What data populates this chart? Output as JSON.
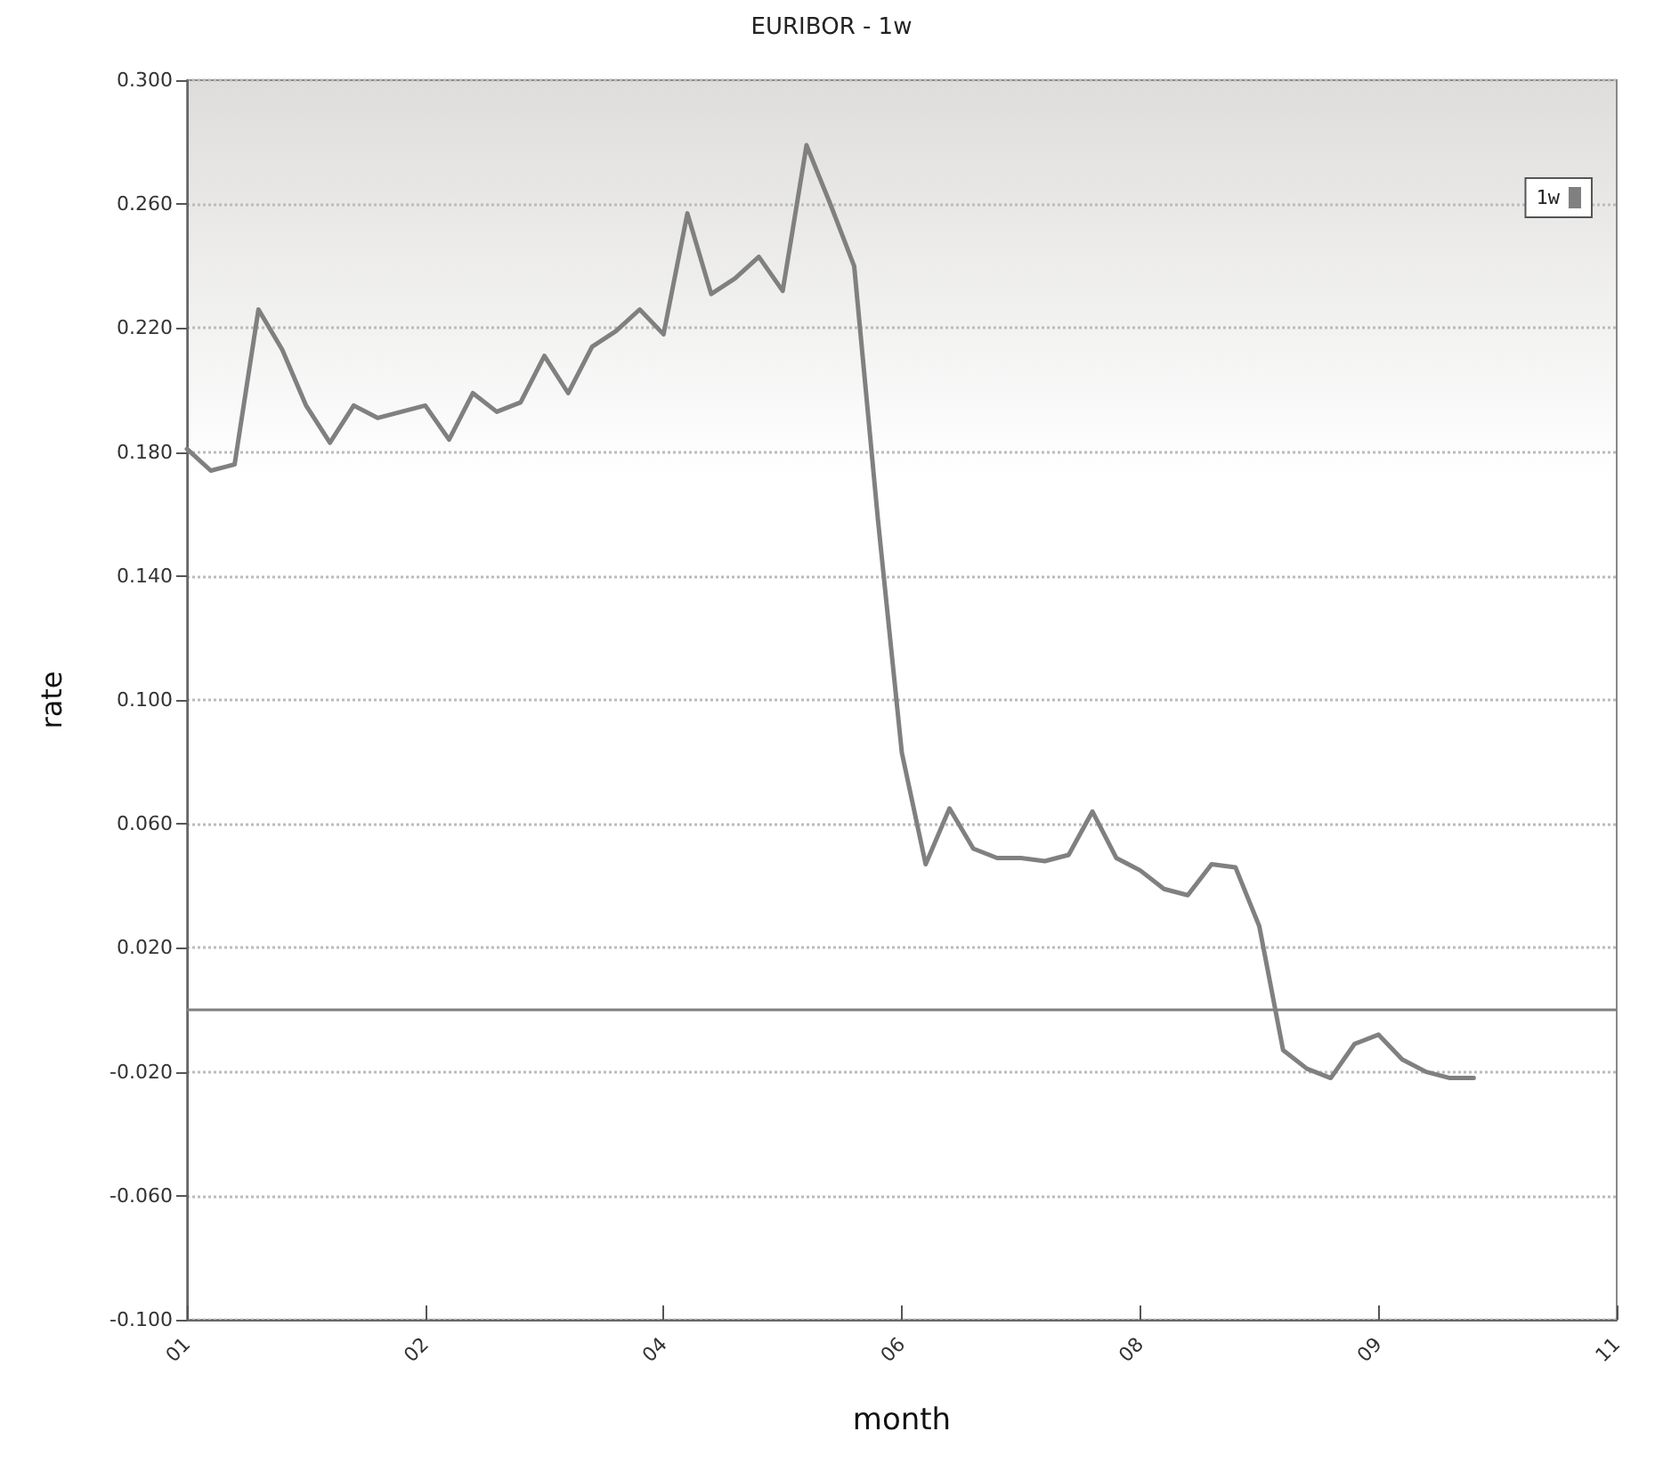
{
  "chart_data": {
    "type": "line",
    "title": "EURIBOR - 1w",
    "xlabel": "month",
    "ylabel": "rate",
    "categories": [
      "01",
      null,
      null,
      null,
      null,
      null,
      null,
      null,
      null,
      null,
      "02",
      null,
      null,
      null,
      null,
      null,
      null,
      null,
      null,
      null,
      "04",
      null,
      null,
      null,
      null,
      null,
      null,
      null,
      null,
      null,
      "06",
      null,
      null,
      null,
      null,
      null,
      null,
      null,
      null,
      null,
      "08",
      null,
      null,
      null,
      null,
      null,
      null,
      null,
      null,
      null,
      "09",
      null,
      null,
      null,
      null,
      null,
      null,
      null,
      null,
      null,
      "11"
    ],
    "ylim": [
      -0.1,
      0.3
    ],
    "yticks": [
      {
        "value": -0.1,
        "label": "-0.100"
      },
      {
        "value": -0.06,
        "label": "-0.060"
      },
      {
        "value": -0.02,
        "label": "-0.020"
      },
      {
        "value": 0.02,
        "label": "0.020"
      },
      {
        "value": 0.06,
        "label": "0.060"
      },
      {
        "value": 0.1,
        "label": "0.100"
      },
      {
        "value": 0.14,
        "label": "0.140"
      },
      {
        "value": 0.18,
        "label": "0.180"
      },
      {
        "value": 0.22,
        "label": "0.220"
      },
      {
        "value": 0.26,
        "label": "0.260"
      },
      {
        "value": 0.3,
        "label": "0.300"
      }
    ],
    "grid": "y",
    "legend": "top right",
    "marker": "none",
    "line_style": "solid",
    "ref_lines": [
      {
        "axis": "y",
        "value": 0,
        "color": "#808080"
      }
    ],
    "series": [
      {
        "name": "1w",
        "color": "#808080",
        "values": [
          0.181,
          0.174,
          0.176,
          0.226,
          0.213,
          0.195,
          0.183,
          0.195,
          0.191,
          0.193,
          0.195,
          0.184,
          0.199,
          0.193,
          0.196,
          0.211,
          0.199,
          0.214,
          0.219,
          0.226,
          0.218,
          0.257,
          0.231,
          0.236,
          0.243,
          0.232,
          0.279,
          0.26,
          0.24,
          0.158,
          0.083,
          0.047,
          0.065,
          0.052,
          0.049,
          0.049,
          0.048,
          0.05,
          0.064,
          0.049,
          0.045,
          0.039,
          0.037,
          0.047,
          0.046,
          0.027,
          -0.013,
          -0.019,
          -0.022,
          -0.011,
          -0.008,
          -0.016,
          -0.02,
          -0.022,
          -0.022,
          null,
          null,
          null,
          null,
          null,
          null
        ]
      }
    ]
  }
}
